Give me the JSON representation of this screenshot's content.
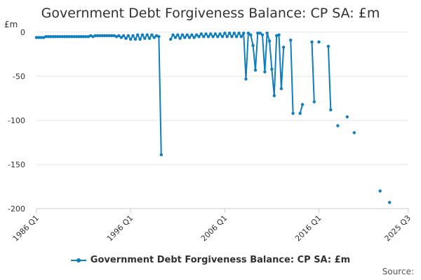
{
  "chart_data": {
    "type": "line",
    "title": "Government Debt Forgiveness Balance: CP SA: £m",
    "ylabel": "£m",
    "xlabel": "",
    "ylim": [
      -200,
      0
    ],
    "yticks": [
      0,
      -50,
      -100,
      -150,
      -200
    ],
    "xlim": [
      1986.0,
      2025.5
    ],
    "xticks": [
      {
        "label": "1986 Q1",
        "value": 1986.0
      },
      {
        "label": "1996 Q1",
        "value": 1996.0
      },
      {
        "label": "2006 Q1",
        "value": 2006.0
      },
      {
        "label": "2016 Q1",
        "value": 2016.0
      },
      {
        "label": "2025 Q3",
        "value": 2025.5
      }
    ],
    "grid": true,
    "legend_position": "bottom",
    "series": [
      {
        "name": "Government Debt Forgiveness Balance: CP SA: £m",
        "color": "#0f7ebd",
        "segments": [
          [
            [
              1986.0,
              -6
            ],
            [
              1986.25,
              -6
            ],
            [
              1986.5,
              -6
            ],
            [
              1986.75,
              -6
            ],
            [
              1987.0,
              -5
            ],
            [
              1987.25,
              -5
            ],
            [
              1987.5,
              -5
            ],
            [
              1987.75,
              -5
            ],
            [
              1988.0,
              -5
            ],
            [
              1988.25,
              -5
            ],
            [
              1988.5,
              -5
            ],
            [
              1988.75,
              -5
            ],
            [
              1989.0,
              -5
            ],
            [
              1989.25,
              -5
            ],
            [
              1989.5,
              -5
            ],
            [
              1989.75,
              -5
            ],
            [
              1990.0,
              -5
            ],
            [
              1990.25,
              -5
            ],
            [
              1990.5,
              -5
            ],
            [
              1990.75,
              -5
            ],
            [
              1991.0,
              -5
            ],
            [
              1991.25,
              -5
            ],
            [
              1991.5,
              -5
            ],
            [
              1991.75,
              -4
            ],
            [
              1992.0,
              -5
            ],
            [
              1992.25,
              -4
            ],
            [
              1992.5,
              -4
            ],
            [
              1992.75,
              -4
            ],
            [
              1993.0,
              -4
            ],
            [
              1993.25,
              -4
            ],
            [
              1993.5,
              -4
            ],
            [
              1993.75,
              -4
            ],
            [
              1994.0,
              -4
            ],
            [
              1994.25,
              -4
            ],
            [
              1994.5,
              -5
            ],
            [
              1994.75,
              -4
            ],
            [
              1995.0,
              -6
            ],
            [
              1995.25,
              -4
            ],
            [
              1995.5,
              -7
            ],
            [
              1995.75,
              -4
            ],
            [
              1996.0,
              -8
            ],
            [
              1996.25,
              -4
            ],
            [
              1996.5,
              -8
            ],
            [
              1996.75,
              -3
            ],
            [
              1997.0,
              -8
            ],
            [
              1997.25,
              -3
            ],
            [
              1997.5,
              -7
            ],
            [
              1997.75,
              -3
            ],
            [
              1998.0,
              -7
            ],
            [
              1998.25,
              -3
            ],
            [
              1998.5,
              -6
            ],
            [
              1998.75,
              -4
            ],
            [
              1999.0,
              -5
            ],
            [
              1999.25,
              -139
            ]
          ],
          [
            [
              2000.25,
              -8
            ],
            [
              2000.5,
              -3
            ],
            [
              2000.75,
              -6
            ],
            [
              2001.0,
              -3
            ],
            [
              2001.25,
              -7
            ],
            [
              2001.5,
              -3
            ],
            [
              2001.75,
              -6
            ],
            [
              2002.0,
              -3
            ],
            [
              2002.25,
              -6
            ],
            [
              2002.5,
              -3
            ],
            [
              2002.75,
              -6
            ],
            [
              2003.0,
              -3
            ],
            [
              2003.25,
              -5
            ],
            [
              2003.5,
              -2
            ],
            [
              2003.75,
              -5
            ],
            [
              2004.0,
              -2
            ],
            [
              2004.25,
              -5
            ],
            [
              2004.5,
              -2
            ],
            [
              2004.75,
              -5
            ],
            [
              2005.0,
              -2
            ],
            [
              2005.25,
              -5
            ],
            [
              2005.5,
              -2
            ],
            [
              2005.75,
              -5
            ],
            [
              2006.0,
              -1
            ],
            [
              2006.25,
              -5
            ],
            [
              2006.5,
              -1
            ],
            [
              2006.75,
              -5
            ],
            [
              2007.0,
              -1
            ],
            [
              2007.25,
              -5
            ],
            [
              2007.5,
              -1
            ],
            [
              2007.75,
              -5
            ],
            [
              2008.0,
              -1
            ],
            [
              2008.25,
              -53
            ],
            [
              2008.5,
              -1
            ],
            [
              2008.75,
              -3
            ],
            [
              2009.0,
              -15
            ],
            [
              2009.25,
              -43
            ],
            [
              2009.5,
              -1
            ],
            [
              2009.75,
              -1
            ],
            [
              2010.0,
              -3
            ],
            [
              2010.25,
              -45
            ],
            [
              2010.5,
              -1
            ],
            [
              2010.75,
              -10
            ],
            [
              2011.0,
              -42
            ],
            [
              2011.25,
              -72
            ],
            [
              2011.5,
              -4
            ],
            [
              2011.75,
              -3
            ],
            [
              2012.0,
              -64
            ],
            [
              2012.25,
              -17
            ]
          ],
          [
            [
              2013.0,
              -9
            ],
            [
              2013.25,
              -92
            ]
          ],
          [
            [
              2014.0,
              -92
            ],
            [
              2014.25,
              -82
            ]
          ],
          [
            [
              2015.25,
              -11
            ],
            [
              2015.5,
              -79
            ]
          ],
          [
            [
              2016.0,
              -11
            ]
          ],
          [
            [
              2017.0,
              -16
            ],
            [
              2017.25,
              -88
            ]
          ],
          [
            [
              2018.0,
              -106
            ]
          ],
          [
            [
              2019.0,
              -96
            ]
          ],
          [
            [
              2019.75,
              -114
            ]
          ],
          [
            [
              2022.5,
              -180
            ]
          ],
          [
            [
              2023.5,
              -193
            ]
          ]
        ]
      }
    ]
  },
  "footer": {
    "source_label": "Source:"
  }
}
